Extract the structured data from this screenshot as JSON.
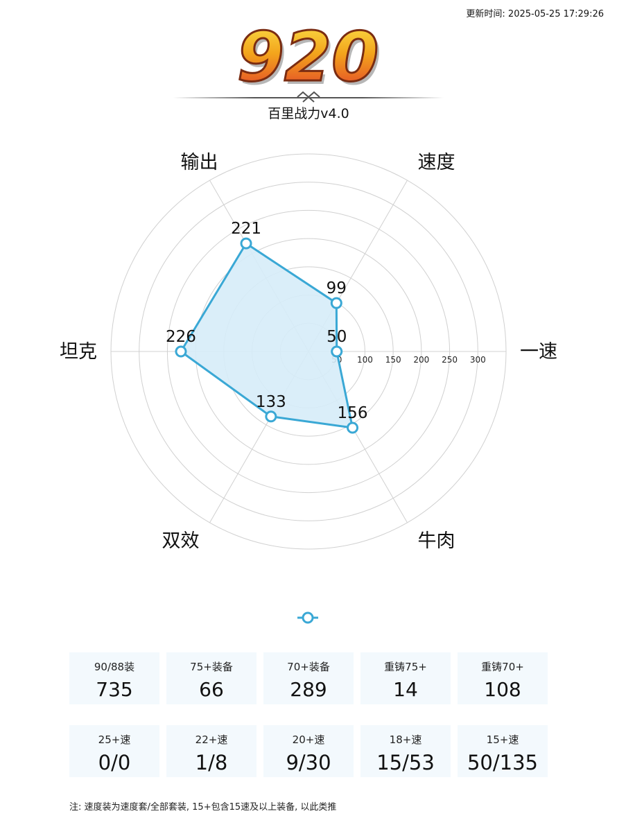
{
  "update_time": "更新时间: 2025-05-25 17:29:26",
  "score": "920",
  "subtitle": "百里战力v4.0",
  "colors": {
    "series_line": "#3aa8d5",
    "series_fill": "#d6ecf8",
    "grid": "#d0d0d0",
    "score_top": "#f7d21a",
    "score_bottom": "#e0392b",
    "card_bg": "#f3f9fd"
  },
  "chart_data": {
    "type": "radar",
    "indicators": [
      "一速",
      "速度",
      "输出",
      "坦克",
      "双效",
      "牛肉"
    ],
    "rmax": 350,
    "ticks": [
      50,
      100,
      150,
      200,
      250,
      300
    ],
    "series": [
      {
        "values": [
          50,
          99,
          221,
          226,
          133,
          156
        ]
      }
    ],
    "data_labels": [
      "50",
      "99",
      "221",
      "226",
      "133",
      "156"
    ],
    "grid": true
  },
  "stats_row1": [
    {
      "label": "90/88装",
      "value": "735"
    },
    {
      "label": "75+装备",
      "value": "66"
    },
    {
      "label": "70+装备",
      "value": "289"
    },
    {
      "label": "重铸75+",
      "value": "14"
    },
    {
      "label": "重铸70+",
      "value": "108"
    }
  ],
  "stats_row2": [
    {
      "label": "25+速",
      "value": "0/0"
    },
    {
      "label": "22+速",
      "value": "1/8"
    },
    {
      "label": "20+速",
      "value": "9/30"
    },
    {
      "label": "18+速",
      "value": "15/53"
    },
    {
      "label": "15+速",
      "value": "50/135"
    }
  ],
  "note": "注: 速度装为速度套/全部套装, 15+包含15速及以上装备, 以此类推"
}
